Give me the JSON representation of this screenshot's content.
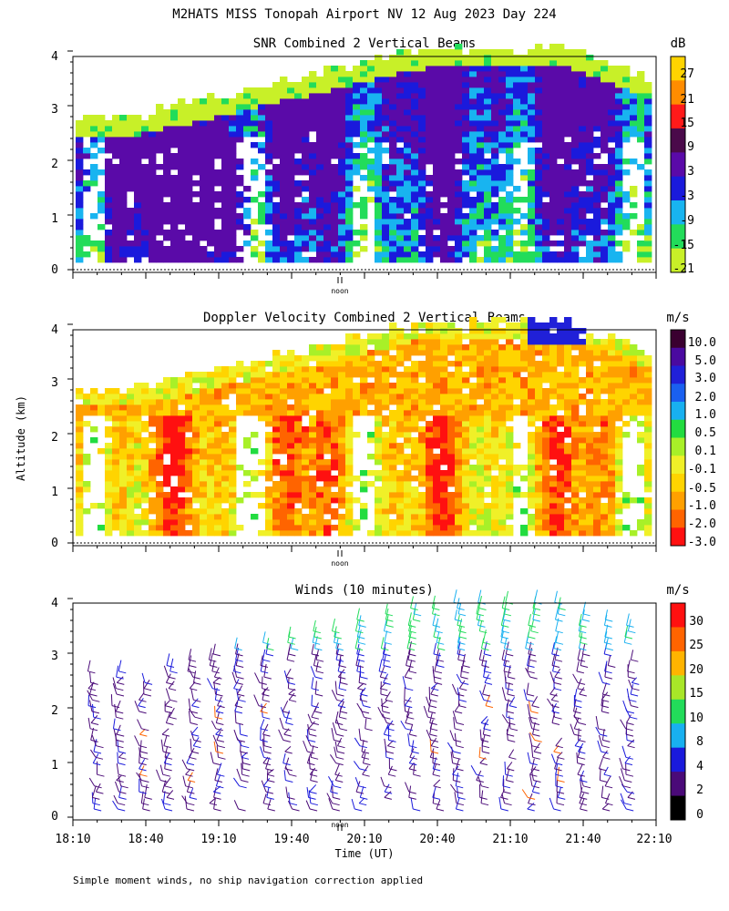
{
  "figure": {
    "title": "M2HATS MISS Tonopah Airport NV  12 Aug 2023 Day 224",
    "ylabel": "Altitude (km)",
    "xlabel": "Time (UT)",
    "footnote": "Simple moment winds, no ship navigation correction applied",
    "noon_label": "noon"
  },
  "chart_data": [
    {
      "type": "heatmap",
      "title": "SNR Combined 2 Vertical Beams",
      "units": "dB",
      "y_ticks": [
        "0",
        "1",
        "2",
        "3",
        "4"
      ],
      "ylim": [
        0,
        4
      ],
      "xlim": [
        "18:10",
        "22:10"
      ],
      "colorbar_labels": [
        "27",
        "21",
        "15",
        "9",
        "3",
        "-3",
        "-9",
        "-15",
        "-21"
      ],
      "colors": [
        "#ffd400",
        "#ff8c00",
        "#ff1a1a",
        "#4a0a4a",
        "#5a0aa8",
        "#1a1adc",
        "#18b4f0",
        "#22dc5a",
        "#c8f028"
      ],
      "notes": "Echo top rises from about 2.7 km at 18:10 to about 4 km after 20:30; strong returns below 2 km"
    },
    {
      "type": "heatmap",
      "title": "Doppler Velocity Combined 2 Vertical Beams",
      "units": "m/s",
      "y_ticks": [
        "0",
        "1",
        "2",
        "3",
        "4"
      ],
      "ylim": [
        0,
        4
      ],
      "xlim": [
        "18:10",
        "22:10"
      ],
      "colorbar_labels": [
        "10.0",
        "5.0",
        "3.0",
        "2.0",
        "1.0",
        "0.5",
        "0.1",
        "-0.1",
        "-0.5",
        "-1.0",
        "-2.0",
        "-3.0"
      ],
      "colors": [
        "#3a0030",
        "#4a0aa0",
        "#2020d8",
        "#1a60f0",
        "#18b0f0",
        "#22dc40",
        "#a8f028",
        "#f0f028",
        "#ffd400",
        "#ffa000",
        "#ff6400",
        "#ff1010"
      ]
    },
    {
      "type": "scatter",
      "title": "Winds (10 minutes)",
      "units": "m/s",
      "y_ticks": [
        "0",
        "1",
        "2",
        "3",
        "4"
      ],
      "ylim": [
        0,
        4
      ],
      "x_ticks": [
        "18:10",
        "18:40",
        "19:10",
        "19:40",
        "20:10",
        "20:40",
        "21:10",
        "21:40",
        "22:10"
      ],
      "xlim": [
        "18:10",
        "22:10"
      ],
      "colorbar_labels": [
        "30",
        "25",
        "20",
        "15",
        "10",
        "8",
        "4",
        "2",
        "0"
      ],
      "colors": [
        "#ff1010",
        "#ff6400",
        "#ffb400",
        "#a8e628",
        "#22dc5a",
        "#18b0f0",
        "#1a1adc",
        "#4a0a78",
        "#000000"
      ],
      "profile_times": [
        "18:20",
        "18:30",
        "18:40",
        "18:50",
        "19:00",
        "19:10",
        "19:20",
        "19:30",
        "19:40",
        "19:50",
        "20:00",
        "20:10",
        "20:20",
        "20:30",
        "20:40",
        "20:50",
        "21:00",
        "21:10",
        "21:20",
        "21:30",
        "21:40",
        "21:50",
        "22:00"
      ]
    }
  ]
}
